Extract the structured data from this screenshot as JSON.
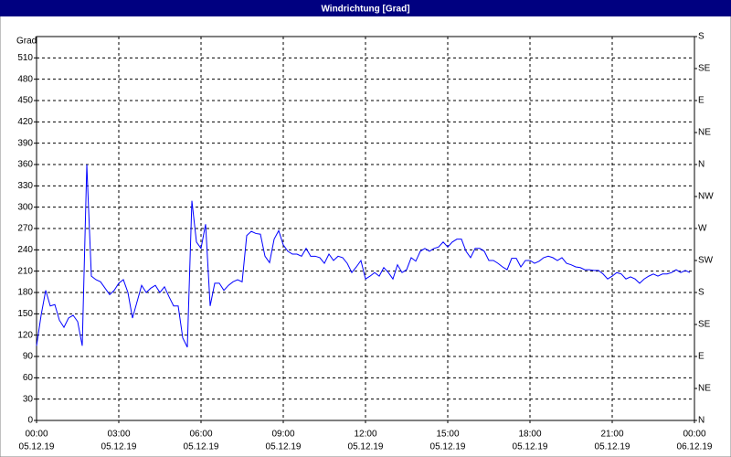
{
  "chart_data": {
    "type": "line",
    "title": "Windrichtung [Grad]",
    "y_label": "Grad",
    "color": "#0000ff",
    "grid": true,
    "x": [
      0,
      10,
      20,
      30,
      40,
      50,
      60,
      70,
      80,
      90,
      100,
      110,
      114,
      120,
      130,
      140,
      150,
      160,
      170,
      180,
      190,
      200,
      210,
      220,
      230,
      240,
      250,
      260,
      270,
      280,
      290,
      300,
      310,
      320,
      330,
      340,
      350,
      360,
      370,
      380,
      390,
      400,
      410,
      420,
      430,
      440,
      450,
      460,
      470,
      480,
      490,
      500,
      510,
      520,
      530,
      540,
      550,
      560,
      570,
      580,
      590,
      600,
      610,
      620,
      630,
      640,
      650,
      660,
      670,
      680,
      690,
      700,
      710,
      720,
      730,
      740,
      750,
      760,
      770,
      780,
      790,
      800,
      810,
      820,
      830,
      840,
      850,
      860,
      870,
      880,
      890,
      900,
      910,
      920,
      930,
      940,
      950,
      960,
      970,
      980,
      990,
      1000,
      1010,
      1020,
      1030,
      1040,
      1050,
      1060,
      1070,
      1080,
      1090,
      1100,
      1110,
      1120,
      1130,
      1140,
      1150,
      1160,
      1170,
      1180,
      1190,
      1200,
      1210,
      1220,
      1230,
      1240,
      1250,
      1260,
      1270,
      1280,
      1290,
      1300,
      1310,
      1320,
      1330,
      1340,
      1350,
      1360,
      1370,
      1380,
      1390,
      1400,
      1410,
      1420,
      1430
    ],
    "values": [
      105,
      148,
      183,
      161,
      163,
      141,
      131,
      144,
      148,
      139,
      105,
      360,
      296,
      203,
      198,
      195,
      186,
      177,
      183,
      193,
      198,
      180,
      144,
      167,
      190,
      180,
      186,
      190,
      180,
      188,
      174,
      161,
      161,
      116,
      103,
      309,
      251,
      242,
      276,
      161,
      193,
      193,
      183,
      190,
      195,
      198,
      195,
      260,
      266,
      263,
      262,
      231,
      222,
      255,
      267,
      247,
      238,
      234,
      234,
      231,
      242,
      231,
      231,
      229,
      221,
      234,
      225,
      231,
      229,
      221,
      208,
      216,
      225,
      199,
      203,
      208,
      203,
      215,
      208,
      199,
      219,
      208,
      212,
      229,
      224,
      238,
      242,
      238,
      242,
      244,
      251,
      244,
      251,
      255,
      255,
      238,
      229,
      242,
      242,
      238,
      225,
      225,
      221,
      216,
      212,
      228,
      228,
      216,
      225,
      225,
      221,
      224,
      229,
      231,
      229,
      225,
      229,
      221,
      219,
      216,
      215,
      212,
      212,
      211,
      211,
      206,
      199,
      203,
      208,
      206,
      199,
      202,
      199,
      193,
      199,
      203,
      206,
      203,
      206,
      206,
      208,
      212,
      208,
      211,
      208
    ],
    "xlim": [
      0,
      1440
    ],
    "xticks": [
      {
        "value": 0,
        "label": "00:00"
      },
      {
        "value": 180,
        "label": "03:00"
      },
      {
        "value": 360,
        "label": "06:00"
      },
      {
        "value": 540,
        "label": "09:00"
      },
      {
        "value": 720,
        "label": "12:00"
      },
      {
        "value": 900,
        "label": "15:00"
      },
      {
        "value": 1080,
        "label": "18:00"
      },
      {
        "value": 1260,
        "label": "21:00"
      },
      {
        "value": 1440,
        "label": "00:00"
      }
    ],
    "xtick_dates": [
      "05.12.19",
      "05.12.19",
      "05.12.19",
      "05.12.19",
      "05.12.19",
      "05.12.19",
      "05.12.19",
      "05.12.19",
      "06.12.19"
    ],
    "ylim": [
      0,
      540
    ],
    "yticks": [
      0,
      30,
      60,
      90,
      120,
      150,
      180,
      210,
      240,
      270,
      300,
      330,
      360,
      390,
      420,
      450,
      480,
      510
    ],
    "y2lim": [
      0,
      540
    ],
    "y2ticks": [
      {
        "value": 0,
        "label": "N"
      },
      {
        "value": 45,
        "label": "NE"
      },
      {
        "value": 90,
        "label": "E"
      },
      {
        "value": 135,
        "label": "SE"
      },
      {
        "value": 180,
        "label": "S"
      },
      {
        "value": 225,
        "label": "SW"
      },
      {
        "value": 270,
        "label": "W"
      },
      {
        "value": 315,
        "label": "NW"
      },
      {
        "value": 360,
        "label": "N"
      },
      {
        "value": 405,
        "label": "NE"
      },
      {
        "value": 450,
        "label": "E"
      },
      {
        "value": 495,
        "label": "SE"
      },
      {
        "value": 540,
        "label": "S"
      }
    ]
  }
}
